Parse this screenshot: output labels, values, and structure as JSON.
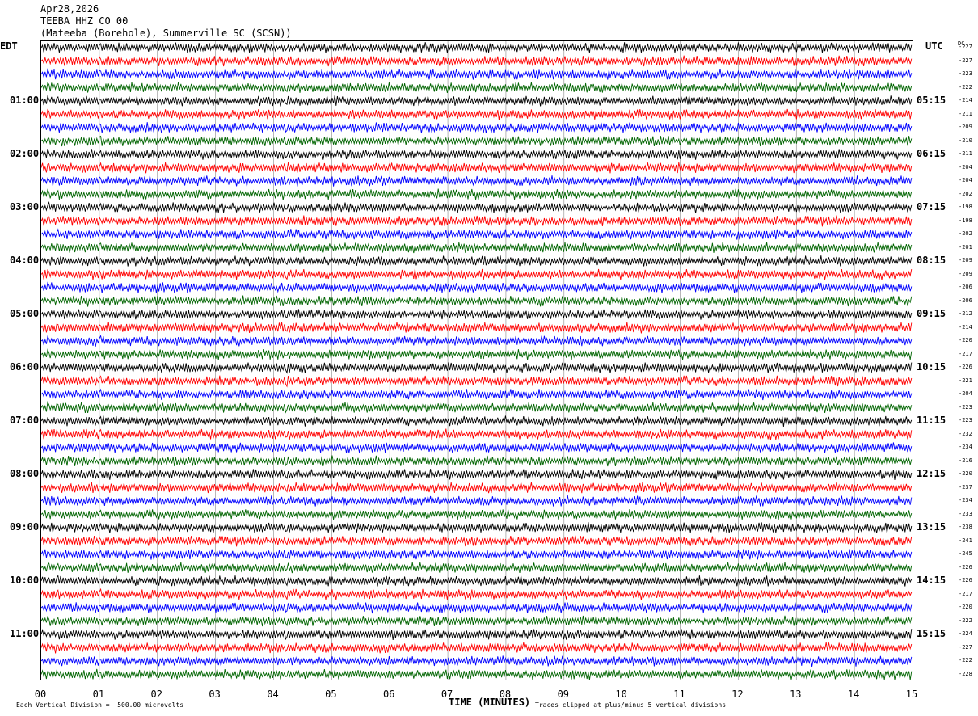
{
  "header": {
    "date": "Apr28,2026",
    "station": "TEEBA HHZ CO 00",
    "location": "(Mateeba (Borehole), Summerville SC (SCSN))"
  },
  "labels": {
    "left_tz": "EDT",
    "right_tz": "UTC",
    "dc": "DC",
    "xlabel": "TIME (MINUTES)",
    "note_left": "Each Vertical Division =  500.00 microvolts",
    "note_right": "Traces clipped at plus/minus 5 vertical divisions"
  },
  "chart_data": {
    "type": "line",
    "title": "TEEBA HHZ CO 00",
    "xlabel": "TIME (MINUTES)",
    "xlim": [
      0,
      15
    ],
    "x_ticks": [
      "00",
      "01",
      "02",
      "03",
      "04",
      "05",
      "06",
      "07",
      "08",
      "09",
      "10",
      "11",
      "12",
      "13",
      "14",
      "15"
    ],
    "left_time_labels": [
      "01:00",
      "02:00",
      "03:00",
      "04:00",
      "05:00",
      "06:00",
      "07:00",
      "08:00",
      "09:00",
      "10:00",
      "11:00"
    ],
    "right_time_labels": [
      "05:15",
      "06:15",
      "07:15",
      "08:15",
      "09:15",
      "10:15",
      "11:15",
      "12:15",
      "13:15",
      "14:15",
      "15:15"
    ],
    "trace_colors": [
      "#000000",
      "#ff0000",
      "#0000ff",
      "#006400"
    ],
    "dc_offsets": [
      -227,
      -227,
      -223,
      -222,
      -214,
      -211,
      -209,
      -210,
      -211,
      -204,
      -204,
      -202,
      -198,
      -198,
      -202,
      -201,
      -209,
      -209,
      -206,
      -206,
      -212,
      -214,
      -220,
      -217,
      -226,
      -221,
      -204,
      -223,
      -223,
      -232,
      -234,
      -216,
      -220,
      -237,
      -234,
      -233,
      -238,
      -241,
      -245,
      -226,
      -226,
      -217,
      -220,
      -222,
      -224,
      -227,
      -222,
      -228
    ]
  }
}
